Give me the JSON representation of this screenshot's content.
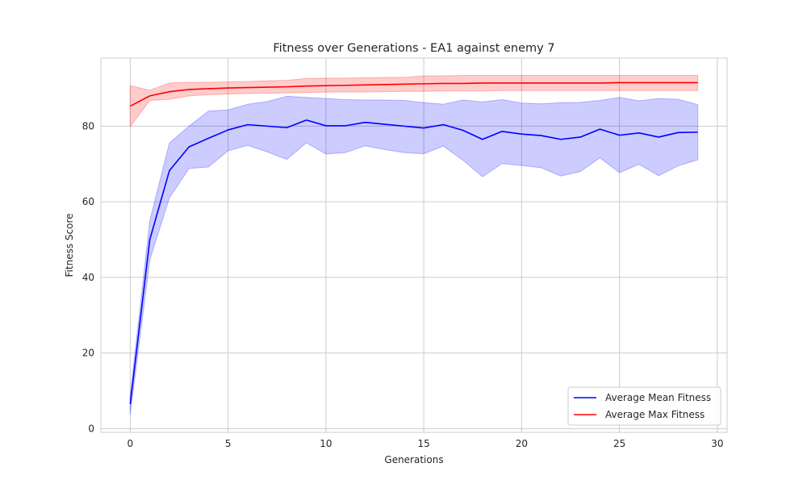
{
  "chart_data": {
    "type": "line",
    "title": "Fitness over Generations - EA1 against enemy 7",
    "xlabel": "Generations",
    "ylabel": "Fitness Score",
    "xlim": [
      -1.5,
      30.5
    ],
    "ylim": [
      -1,
      98
    ],
    "xticks": [
      0,
      5,
      10,
      15,
      20,
      25,
      30
    ],
    "yticks": [
      0,
      20,
      40,
      60,
      80
    ],
    "grid": true,
    "legend_position": "bottom-right",
    "x": [
      0,
      1,
      2,
      3,
      4,
      5,
      6,
      7,
      8,
      9,
      10,
      11,
      12,
      13,
      14,
      15,
      16,
      17,
      18,
      19,
      20,
      21,
      22,
      23,
      24,
      25,
      26,
      27,
      28,
      29
    ],
    "series": [
      {
        "name": "Average Mean Fitness",
        "color": "#0000ff",
        "values": [
          6.5,
          50,
          68.2,
          74.5,
          76.8,
          79,
          80.4,
          80,
          79.6,
          81.6,
          80.1,
          80.1,
          81,
          80.5,
          80,
          79.5,
          80.4,
          78.9,
          76.5,
          78.6,
          77.9,
          77.5,
          76.5,
          77.1,
          79.2,
          77.6,
          78.2,
          77.1,
          78.3,
          78.4
        ],
        "band_upper": [
          9,
          55,
          75.5,
          80,
          84,
          84.3,
          85.8,
          86.5,
          87.9,
          87.6,
          87.3,
          87,
          86.9,
          86.9,
          86.8,
          86.2,
          85.8,
          86.9,
          86.4,
          87,
          86.1,
          85.9,
          86.2,
          86.3,
          86.8,
          87.6,
          86.7,
          87.3,
          87.1,
          85.7
        ],
        "band_lower": [
          3.7,
          44.6,
          61,
          68.8,
          69.2,
          73.5,
          74.9,
          73.2,
          71.2,
          75.6,
          72.6,
          73,
          74.8,
          73.8,
          73,
          72.7,
          74.7,
          71,
          66.6,
          70.1,
          69.6,
          69,
          66.8,
          68,
          71.6,
          67.7,
          69.9,
          66.9,
          69.5,
          71.1
        ]
      },
      {
        "name": "Average Max Fitness",
        "color": "#ff0000",
        "values": [
          85.3,
          88,
          89.1,
          89.7,
          89.9,
          90.1,
          90.2,
          90.3,
          90.4,
          90.6,
          90.7,
          90.8,
          90.9,
          91,
          91.1,
          91.2,
          91.3,
          91.3,
          91.4,
          91.4,
          91.4,
          91.4,
          91.4,
          91.4,
          91.4,
          91.5,
          91.5,
          91.5,
          91.5,
          91.5
        ],
        "band_upper": [
          90.7,
          89.5,
          91.4,
          91.6,
          91.6,
          91.7,
          91.8,
          92,
          92.1,
          92.6,
          92.7,
          92.7,
          92.8,
          92.9,
          92.9,
          93.3,
          93.3,
          93.4,
          93.4,
          93.4,
          93.4,
          93.4,
          93.4,
          93.4,
          93.4,
          93.4,
          93.4,
          93.4,
          93.4,
          93.4
        ],
        "band_lower": [
          79.9,
          86.8,
          87.1,
          88,
          88.3,
          88.5,
          88.6,
          88.7,
          88.8,
          88.9,
          89,
          89,
          89,
          89.1,
          89.2,
          89.2,
          89.3,
          89.3,
          89.3,
          89.4,
          89.4,
          89.4,
          89.4,
          89.4,
          89.4,
          89.4,
          89.4,
          89.4,
          89.4,
          89.4
        ]
      }
    ]
  }
}
